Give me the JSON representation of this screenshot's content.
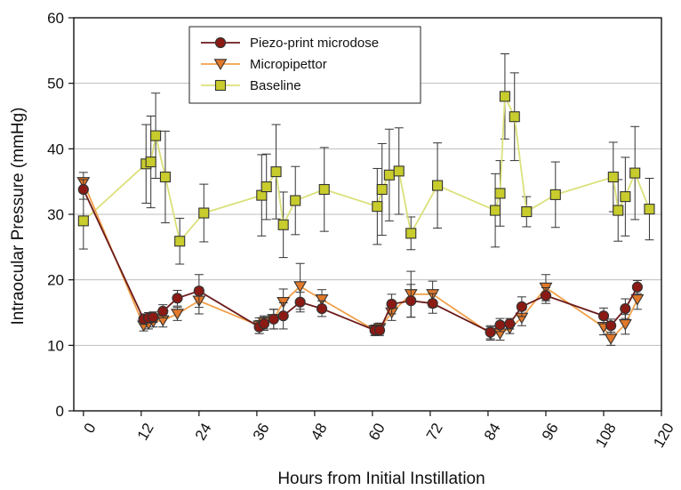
{
  "chart_data": {
    "type": "line",
    "xlabel": "Hours from Initial Instillation",
    "ylabel": "Intraocular Pressure (mmHg)",
    "xlim": [
      -2,
      120
    ],
    "ylim": [
      0,
      60
    ],
    "xticks": [
      "0",
      "12",
      "24",
      "36",
      "48",
      "60",
      "72",
      "84",
      "96",
      "108",
      "120"
    ],
    "xtick_values": [
      0,
      12,
      24,
      36,
      48,
      60,
      72,
      84,
      96,
      108,
      120
    ],
    "yticks": [
      "0",
      "10",
      "20",
      "30",
      "40",
      "50",
      "60"
    ],
    "ytick_values": [
      0,
      10,
      20,
      30,
      40,
      50,
      60
    ],
    "grid": "horizontal",
    "legend_position": "top-left",
    "series": [
      {
        "name": "Piezo-print microdose",
        "color": "#6b1a1a",
        "marker": "circle",
        "marker_fill": "#8b1a14",
        "points": [
          {
            "x": 0,
            "y": 33.8,
            "err": 1.5
          },
          {
            "x": 12.5,
            "y": 14.0,
            "err": 0.8
          },
          {
            "x": 13.5,
            "y": 14.2,
            "err": 0.8
          },
          {
            "x": 14.5,
            "y": 14.3,
            "err": 0.8
          },
          {
            "x": 16.5,
            "y": 15.2,
            "err": 1.0
          },
          {
            "x": 19.5,
            "y": 17.2,
            "err": 1.2
          },
          {
            "x": 24,
            "y": 18.3,
            "err": 2.5
          },
          {
            "x": 36.5,
            "y": 12.8,
            "err": 1.0
          },
          {
            "x": 37.5,
            "y": 13.3,
            "err": 1.0
          },
          {
            "x": 39.5,
            "y": 14.0,
            "err": 1.5
          },
          {
            "x": 41.5,
            "y": 14.5,
            "err": 2.0
          },
          {
            "x": 45,
            "y": 16.6,
            "err": 1.5
          },
          {
            "x": 49.5,
            "y": 15.6,
            "err": 1.2
          },
          {
            "x": 60.5,
            "y": 12.3,
            "err": 0.8
          },
          {
            "x": 61.5,
            "y": 12.3,
            "err": 0.8
          },
          {
            "x": 64,
            "y": 16.3,
            "err": 1.5
          },
          {
            "x": 68,
            "y": 16.8,
            "err": 2.5
          },
          {
            "x": 72.5,
            "y": 16.4,
            "err": 1.5
          },
          {
            "x": 84.5,
            "y": 12.0,
            "err": 1.0
          },
          {
            "x": 86.5,
            "y": 13.1,
            "err": 1.0
          },
          {
            "x": 88.5,
            "y": 13.3,
            "err": 0.8
          },
          {
            "x": 91,
            "y": 15.9,
            "err": 1.5
          },
          {
            "x": 96,
            "y": 17.6,
            "err": 1.2
          },
          {
            "x": 108,
            "y": 14.5,
            "err": 1.2
          },
          {
            "x": 109.5,
            "y": 13.0,
            "err": 1.0
          },
          {
            "x": 112.5,
            "y": 15.6,
            "err": 1.5
          },
          {
            "x": 115,
            "y": 18.9,
            "err": 1.0
          }
        ]
      },
      {
        "name": "Micropipettor",
        "color": "#f0a04a",
        "marker": "triangle-down",
        "marker_fill": "#e2782a",
        "points": [
          {
            "x": 0,
            "y": 34.9,
            "err": 1.5
          },
          {
            "x": 12.5,
            "y": 13.0,
            "err": 0.8
          },
          {
            "x": 13.5,
            "y": 13.3,
            "err": 0.8
          },
          {
            "x": 14.5,
            "y": 13.6,
            "err": 0.8
          },
          {
            "x": 16.5,
            "y": 13.8,
            "err": 1.0
          },
          {
            "x": 19.5,
            "y": 14.8,
            "err": 1.0
          },
          {
            "x": 24,
            "y": 16.8,
            "err": 2.0
          },
          {
            "x": 36.5,
            "y": 13.0,
            "err": 1.2
          },
          {
            "x": 37.5,
            "y": 13.5,
            "err": 1.0
          },
          {
            "x": 39.5,
            "y": 14.0,
            "err": 1.5
          },
          {
            "x": 41.5,
            "y": 16.6,
            "err": 2.0
          },
          {
            "x": 45,
            "y": 19.0,
            "err": 3.5
          },
          {
            "x": 49.5,
            "y": 17.0,
            "err": 1.5
          },
          {
            "x": 60.5,
            "y": 12.3,
            "err": 0.8
          },
          {
            "x": 61.5,
            "y": 12.6,
            "err": 0.8
          },
          {
            "x": 64,
            "y": 15.0,
            "err": 1.2
          },
          {
            "x": 68,
            "y": 17.8,
            "err": 3.5
          },
          {
            "x": 72.5,
            "y": 17.8,
            "err": 2.0
          },
          {
            "x": 84.5,
            "y": 11.8,
            "err": 1.0
          },
          {
            "x": 86.5,
            "y": 11.8,
            "err": 1.0
          },
          {
            "x": 88.5,
            "y": 12.6,
            "err": 0.8
          },
          {
            "x": 91,
            "y": 14.2,
            "err": 1.2
          },
          {
            "x": 96,
            "y": 18.8,
            "err": 2.0
          },
          {
            "x": 108,
            "y": 12.8,
            "err": 1.2
          },
          {
            "x": 109.5,
            "y": 11.0,
            "err": 1.0
          },
          {
            "x": 112.5,
            "y": 13.2,
            "err": 1.5
          },
          {
            "x": 115,
            "y": 17.0,
            "err": 1.5
          }
        ]
      },
      {
        "name": "Baseline",
        "color": "#dbe07a",
        "marker": "square",
        "marker_fill": "#c8cc2c",
        "points": [
          {
            "x": 0,
            "y": 29.0,
            "err": 4.3
          },
          {
            "x": 13,
            "y": 37.7,
            "err": 6.0
          },
          {
            "x": 14,
            "y": 38.0,
            "err": 7.0
          },
          {
            "x": 15,
            "y": 42.0,
            "err": 6.5
          },
          {
            "x": 17,
            "y": 35.7,
            "err": 7.0
          },
          {
            "x": 20,
            "y": 25.9,
            "err": 3.5
          },
          {
            "x": 25,
            "y": 30.2,
            "err": 4.4
          },
          {
            "x": 37,
            "y": 32.9,
            "err": 6.2
          },
          {
            "x": 38,
            "y": 34.2,
            "err": 5.0
          },
          {
            "x": 40,
            "y": 36.5,
            "err": 7.2
          },
          {
            "x": 41.5,
            "y": 28.4,
            "err": 5.0
          },
          {
            "x": 44,
            "y": 32.1,
            "err": 5.2
          },
          {
            "x": 50,
            "y": 33.8,
            "err": 6.4
          },
          {
            "x": 61,
            "y": 31.2,
            "err": 5.8
          },
          {
            "x": 62,
            "y": 33.8,
            "err": 7.0
          },
          {
            "x": 63.5,
            "y": 36.0,
            "err": 7.0
          },
          {
            "x": 65.5,
            "y": 36.6,
            "err": 6.6
          },
          {
            "x": 68,
            "y": 27.1,
            "err": 2.5
          },
          {
            "x": 73.5,
            "y": 34.4,
            "err": 6.5
          },
          {
            "x": 85.5,
            "y": 30.6,
            "err": 5.6
          },
          {
            "x": 86.5,
            "y": 33.2,
            "err": 5.0
          },
          {
            "x": 87.5,
            "y": 48.0,
            "err": 6.5
          },
          {
            "x": 89.5,
            "y": 44.9,
            "err": 6.7
          },
          {
            "x": 92,
            "y": 30.4,
            "err": 2.3
          },
          {
            "x": 98,
            "y": 33.0,
            "err": 5.0
          },
          {
            "x": 110,
            "y": 35.7,
            "err": 5.3
          },
          {
            "x": 111,
            "y": 30.6,
            "err": 4.7
          },
          {
            "x": 112.5,
            "y": 32.7,
            "err": 6.0
          },
          {
            "x": 114.5,
            "y": 36.3,
            "err": 7.1
          },
          {
            "x": 117.5,
            "y": 30.8,
            "err": 4.7
          }
        ]
      }
    ]
  }
}
